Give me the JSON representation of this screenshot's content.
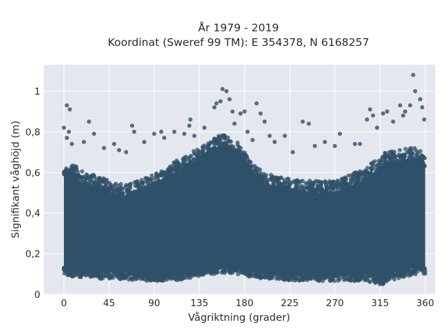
{
  "chart_data": {
    "type": "scatter",
    "title": [
      "År 1979 - 2019",
      "Koordinat (Sweref 99 TM): E 354378, N 6168257"
    ],
    "xlabel": "Vågriktning (grader)",
    "ylabel": "Signifikant våghöjd (m)",
    "xlim": [
      -20,
      370
    ],
    "ylim": [
      0,
      1.13
    ],
    "xticks": [
      0,
      45,
      90,
      135,
      180,
      225,
      270,
      315,
      360
    ],
    "xtick_labels": [
      "0",
      "45",
      "90",
      "135",
      "180",
      "225",
      "270",
      "315",
      "360"
    ],
    "yticks": [
      0,
      0.2,
      0.4,
      0.6,
      0.8,
      1
    ],
    "ytick_labels": [
      "0",
      "0,2",
      "0,4",
      "0,6",
      "0,8",
      "1"
    ],
    "grid": true,
    "background": "#e5e7ef",
    "marker_color": "#2f5068",
    "dense_envelope": {
      "x": [
        0,
        10,
        20,
        30,
        45,
        60,
        75,
        90,
        105,
        120,
        135,
        145,
        155,
        165,
        175,
        185,
        200,
        215,
        225,
        240,
        255,
        270,
        285,
        300,
        310,
        320,
        330,
        340,
        350,
        360
      ],
      "y_low": [
        0.11,
        0.1,
        0.1,
        0.09,
        0.09,
        0.09,
        0.08,
        0.08,
        0.08,
        0.09,
        0.1,
        0.11,
        0.12,
        0.12,
        0.11,
        0.1,
        0.09,
        0.09,
        0.08,
        0.08,
        0.08,
        0.08,
        0.08,
        0.08,
        0.07,
        0.07,
        0.09,
        0.1,
        0.11,
        0.11
      ],
      "y_high": [
        0.62,
        0.6,
        0.56,
        0.55,
        0.52,
        0.5,
        0.52,
        0.55,
        0.6,
        0.64,
        0.68,
        0.72,
        0.75,
        0.74,
        0.7,
        0.62,
        0.56,
        0.54,
        0.53,
        0.52,
        0.52,
        0.52,
        0.55,
        0.58,
        0.62,
        0.66,
        0.67,
        0.68,
        0.68,
        0.66
      ]
    },
    "points": [
      {
        "x": 3,
        "y": 0.93
      },
      {
        "x": 6,
        "y": 0.91
      },
      {
        "x": 0,
        "y": 0.82
      },
      {
        "x": 5,
        "y": 0.8
      },
      {
        "x": 3,
        "y": 0.77
      },
      {
        "x": 8,
        "y": 0.74
      },
      {
        "x": 25,
        "y": 0.85
      },
      {
        "x": 30,
        "y": 0.79
      },
      {
        "x": 20,
        "y": 0.75
      },
      {
        "x": 40,
        "y": 0.72
      },
      {
        "x": 50,
        "y": 0.74
      },
      {
        "x": 55,
        "y": 0.71
      },
      {
        "x": 62,
        "y": 0.7
      },
      {
        "x": 68,
        "y": 0.83
      },
      {
        "x": 70,
        "y": 0.8
      },
      {
        "x": 80,
        "y": 0.75
      },
      {
        "x": 90,
        "y": 0.79
      },
      {
        "x": 97,
        "y": 0.8
      },
      {
        "x": 100,
        "y": 0.77
      },
      {
        "x": 110,
        "y": 0.8
      },
      {
        "x": 120,
        "y": 0.79
      },
      {
        "x": 125,
        "y": 0.83
      },
      {
        "x": 126,
        "y": 0.86
      },
      {
        "x": 130,
        "y": 0.78
      },
      {
        "x": 140,
        "y": 0.82
      },
      {
        "x": 150,
        "y": 0.92
      },
      {
        "x": 152,
        "y": 0.94
      },
      {
        "x": 156,
        "y": 0.95
      },
      {
        "x": 158,
        "y": 1.01
      },
      {
        "x": 162,
        "y": 1.0
      },
      {
        "x": 165,
        "y": 0.96
      },
      {
        "x": 168,
        "y": 0.9
      },
      {
        "x": 170,
        "y": 0.84
      },
      {
        "x": 176,
        "y": 0.89
      },
      {
        "x": 180,
        "y": 0.9
      },
      {
        "x": 183,
        "y": 0.8
      },
      {
        "x": 188,
        "y": 0.76
      },
      {
        "x": 192,
        "y": 0.94
      },
      {
        "x": 196,
        "y": 0.89
      },
      {
        "x": 200,
        "y": 0.85
      },
      {
        "x": 205,
        "y": 0.78
      },
      {
        "x": 210,
        "y": 0.75
      },
      {
        "x": 220,
        "y": 0.78
      },
      {
        "x": 228,
        "y": 0.7
      },
      {
        "x": 238,
        "y": 0.85
      },
      {
        "x": 244,
        "y": 0.84
      },
      {
        "x": 250,
        "y": 0.73
      },
      {
        "x": 260,
        "y": 0.75
      },
      {
        "x": 270,
        "y": 0.73
      },
      {
        "x": 275,
        "y": 0.79
      },
      {
        "x": 290,
        "y": 0.74
      },
      {
        "x": 295,
        "y": 0.74
      },
      {
        "x": 302,
        "y": 0.86
      },
      {
        "x": 305,
        "y": 0.91
      },
      {
        "x": 308,
        "y": 0.88
      },
      {
        "x": 312,
        "y": 0.82
      },
      {
        "x": 318,
        "y": 0.89
      },
      {
        "x": 322,
        "y": 0.9
      },
      {
        "x": 328,
        "y": 0.85
      },
      {
        "x": 335,
        "y": 0.93
      },
      {
        "x": 338,
        "y": 0.88
      },
      {
        "x": 340,
        "y": 0.9
      },
      {
        "x": 345,
        "y": 0.93
      },
      {
        "x": 348,
        "y": 1.08
      },
      {
        "x": 350,
        "y": 1.0
      },
      {
        "x": 355,
        "y": 0.96
      },
      {
        "x": 357,
        "y": 0.92
      },
      {
        "x": 359,
        "y": 0.86
      },
      {
        "x": 310,
        "y": 0.06
      },
      {
        "x": 315,
        "y": 0.05
      },
      {
        "x": 318,
        "y": 0.05
      },
      {
        "x": 300,
        "y": 0.07
      },
      {
        "x": 285,
        "y": 0.07
      },
      {
        "x": 90,
        "y": 0.07
      },
      {
        "x": 60,
        "y": 0.08
      }
    ]
  }
}
